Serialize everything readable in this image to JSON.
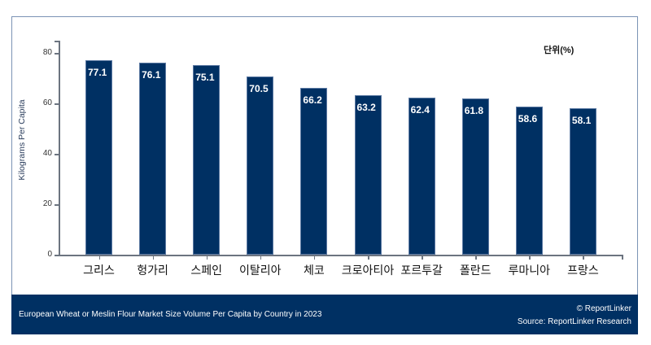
{
  "chart_data": {
    "type": "bar",
    "title": "European Wheat or Meslin Flour Market Size Volume Per Capita by Country in 2023",
    "unit_note": "단위(%)",
    "xlabel": "",
    "ylabel": "Kilograms Per Capita",
    "ylim": [
      0,
      85
    ],
    "yticks": [
      0,
      20,
      40,
      60,
      80
    ],
    "grid": false,
    "legend": null,
    "categories": [
      "그리스",
      "헝가리",
      "스페인",
      "이탈리아",
      "체코",
      "크로아티아",
      "포르투갈",
      "폴란드",
      "루마니아",
      "프랑스"
    ],
    "values": [
      77.1,
      76.1,
      75.1,
      70.5,
      66.2,
      63.2,
      62.4,
      61.8,
      58.6,
      58.1
    ],
    "value_labels": [
      "77.1",
      "76.1",
      "75.1",
      "70.5",
      "66.2",
      "63.2",
      "62.4",
      "61.8",
      "58.6",
      "58.1"
    ],
    "bar_color": "#003063"
  },
  "header": {
    "unit": "단위(%)"
  },
  "axis": {
    "ylabel": "Kilograms Per Capita",
    "ytick_labels": [
      "0",
      "20",
      "40",
      "60",
      "80"
    ]
  },
  "footer": {
    "title": "European Wheat or Meslin Flour Market Size Volume Per Capita by Country in 2023",
    "copyright": "© ReportLinker",
    "source": "Source:  ReportLinker Research",
    "background": "#003063"
  }
}
